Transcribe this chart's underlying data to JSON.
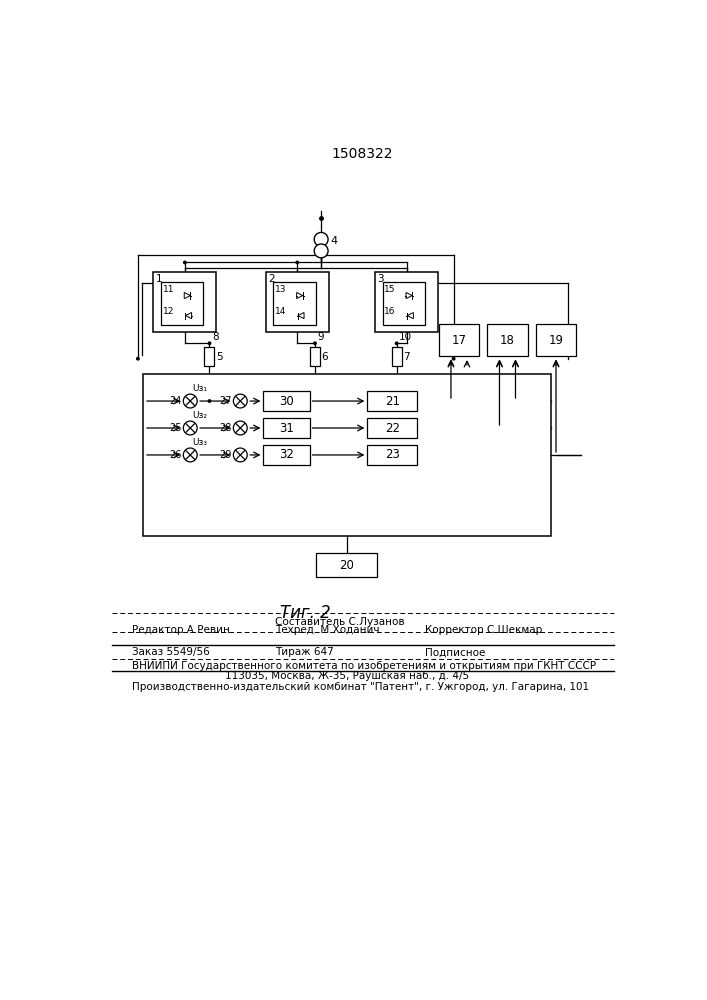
{
  "patent_number": "1508322",
  "fig_label": "Τиг. 2",
  "background_color": "#ffffff",
  "footer": {
    "line1": "Составитель С.Лузанов",
    "line2a": "Редактор А.Ревин",
    "line2b": "Техред  М.Ходанич",
    "line2c": "Корректор С.Шекмар",
    "line3a": "Заказ 5549/56",
    "line3b": "Тираж 647",
    "line3c": "Подписное",
    "line4": "ВНИИПИ Государственного комитета по изобретениям и открытиям при ГКНТ СССР",
    "line5": "113035, Москва, Ж-35, Раушская наб., д. 4/5",
    "line6": "Производственно-издательский комбинат \"Патент\", г. Ужгород, ул. Гагарина, 101"
  }
}
